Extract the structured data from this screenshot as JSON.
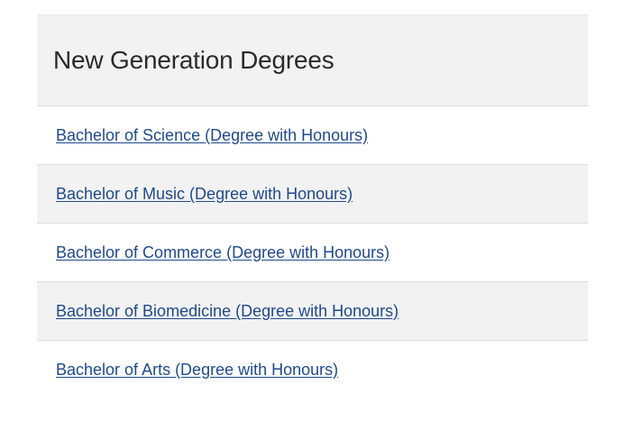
{
  "section": {
    "title": "New Generation Degrees",
    "items": [
      {
        "label": "Bachelor of Science (Degree with Honours)"
      },
      {
        "label": "Bachelor of Music (Degree with Honours)"
      },
      {
        "label": "Bachelor of Commerce (Degree with Honours)"
      },
      {
        "label": "Bachelor of Biomedicine (Degree with Honours)"
      },
      {
        "label": "Bachelor of Arts (Degree with Honours)"
      }
    ]
  },
  "colors": {
    "header_bg": "#f2f2f2",
    "alt_row_bg": "#f2f2f2",
    "link": "#1f4a8c",
    "title_text": "#2b2b2b",
    "divider": "#dcdcdc"
  }
}
